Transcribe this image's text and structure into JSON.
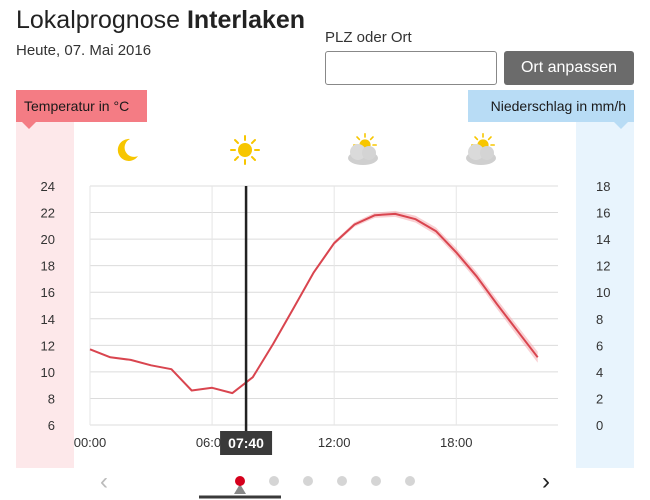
{
  "header": {
    "title_prefix": "Lokalprognose",
    "location": "Interlaken",
    "date": "Heute, 07. Mai 2016"
  },
  "search": {
    "label": "PLZ oder Ort",
    "value": "",
    "placeholder": "",
    "button_label": "Ort anpassen"
  },
  "axis_tags": {
    "left": "Temperatur in °C",
    "right": "Niederschlag in mm/h"
  },
  "weather_icons": [
    "moon-icon",
    "sun-icon",
    "sun-cloud-icon",
    "sun-cloud-icon"
  ],
  "current_time": "07:40",
  "colors": {
    "temperature": "#d9454f",
    "temperature_band": "#f4a9ae",
    "temperature_bg": "#fde8ea",
    "precipitation_bg": "#e8f4fd",
    "active_dot": "#d5001c"
  },
  "pagination": {
    "count": 6,
    "active_index": 0,
    "prev_glyph": "‹",
    "next_glyph": "›"
  },
  "chart_data": {
    "type": "line",
    "x_unit": "hours",
    "x_ticks": [
      {
        "value": 0,
        "label": "00:00"
      },
      {
        "value": 6,
        "label": "06:00"
      },
      {
        "value": 12,
        "label": "12:00"
      },
      {
        "value": 18,
        "label": "18:00"
      }
    ],
    "xlim": [
      0,
      23
    ],
    "ylim_left": [
      6,
      24
    ],
    "yticks_left": [
      6,
      8,
      10,
      12,
      14,
      16,
      18,
      20,
      22,
      24
    ],
    "ylim_right": [
      0,
      18
    ],
    "yticks_right": [
      0,
      2,
      4,
      6,
      8,
      10,
      12,
      14,
      16,
      18
    ],
    "grid": true,
    "current_x": 7.67,
    "series": [
      {
        "axis": "left",
        "x": [
          0,
          1,
          2,
          3,
          4,
          5,
          6,
          7,
          8,
          9,
          10,
          11,
          12,
          13,
          14,
          15,
          16,
          17,
          18,
          19,
          20,
          21,
          22,
          23
        ],
        "values": [
          11.7,
          11.1,
          10.9,
          10.5,
          10.2,
          8.6,
          8.8,
          8.4,
          9.6,
          12.1,
          14.8,
          17.5,
          19.7,
          21.1,
          21.8,
          21.9,
          21.5,
          20.6,
          19.0,
          17.2,
          15.1,
          13.1,
          11.1,
          null
        ],
        "band_from_x": 8
      }
    ]
  }
}
